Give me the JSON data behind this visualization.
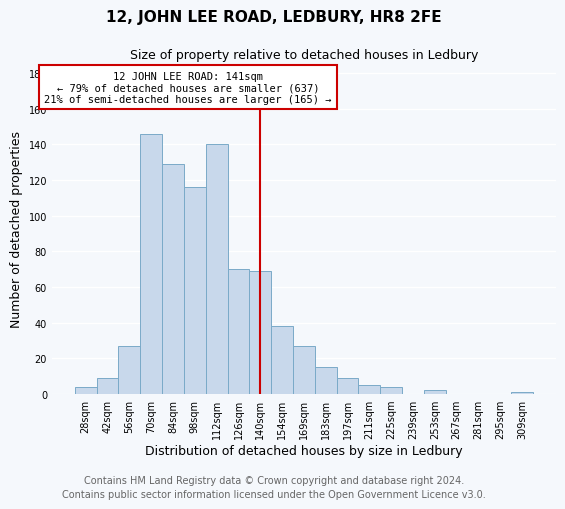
{
  "title": "12, JOHN LEE ROAD, LEDBURY, HR8 2FE",
  "subtitle": "Size of property relative to detached houses in Ledbury",
  "xlabel": "Distribution of detached houses by size in Ledbury",
  "ylabel": "Number of detached properties",
  "bar_color": "#c8d8eb",
  "bar_edge_color": "#7aaac8",
  "categories": [
    "28sqm",
    "42sqm",
    "56sqm",
    "70sqm",
    "84sqm",
    "98sqm",
    "112sqm",
    "126sqm",
    "140sqm",
    "154sqm",
    "169sqm",
    "183sqm",
    "197sqm",
    "211sqm",
    "225sqm",
    "239sqm",
    "253sqm",
    "267sqm",
    "281sqm",
    "295sqm",
    "309sqm"
  ],
  "values": [
    4,
    9,
    27,
    146,
    129,
    116,
    140,
    70,
    69,
    38,
    27,
    15,
    9,
    5,
    4,
    0,
    2,
    0,
    0,
    0,
    1
  ],
  "vline_color": "#cc0000",
  "vline_index": 8,
  "annotation_line1": "12 JOHN LEE ROAD: 141sqm",
  "annotation_line2": "← 79% of detached houses are smaller (637)",
  "annotation_line3": "21% of semi-detached houses are larger (165) →",
  "annotation_box_color": "#ffffff",
  "annotation_box_edge_color": "#cc0000",
  "ylim": [
    0,
    185
  ],
  "yticks": [
    0,
    20,
    40,
    60,
    80,
    100,
    120,
    140,
    160,
    180
  ],
  "footer_line1": "Contains HM Land Registry data © Crown copyright and database right 2024.",
  "footer_line2": "Contains public sector information licensed under the Open Government Licence v3.0.",
  "background_color": "#f5f8fc",
  "grid_color": "#ffffff",
  "title_fontsize": 11,
  "subtitle_fontsize": 9,
  "axis_label_fontsize": 9,
  "tick_fontsize": 7,
  "footer_fontsize": 7
}
